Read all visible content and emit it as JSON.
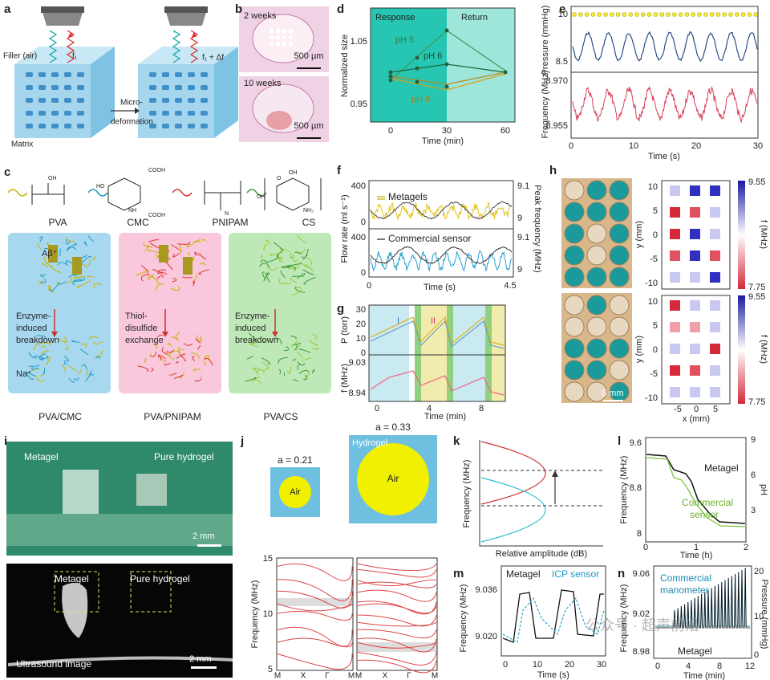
{
  "panels": {
    "a": {
      "label": "a",
      "filler": "Filler (air)",
      "f1": "f₁",
      "f1df": "f₁ + Δf",
      "micro": "Micro-",
      "deformation": "deformation",
      "matrix": "Matrix"
    },
    "b": {
      "label": "b",
      "w2": "2 weeks",
      "scale1": "500 µm",
      "w10": "10 weeks",
      "scale2": "500 µm"
    },
    "c": {
      "label": "c",
      "pva": "PVA",
      "cmc": "CMC",
      "pnipam": "PNIPAM",
      "cs": "CS",
      "groups": [
        "OH",
        "COOH",
        "HO",
        "NH",
        "COOH",
        "O",
        "N",
        "OH",
        "OH",
        "NH₂"
      ],
      "ion": "Aβ⁺",
      "enzyme1": [
        "Enzyme-",
        "induced",
        "breakdown"
      ],
      "na": "Na⁺",
      "thiol": [
        "Thiol-",
        "disulfide",
        "exchange"
      ],
      "enzyme2": [
        "Enzyme-",
        "induced",
        "breakdown"
      ],
      "names": [
        "PVA/CMC",
        "PVA/PNIPAM",
        "PVA/CS"
      ]
    },
    "d": {
      "label": "d",
      "response": "Response",
      "return": "Return",
      "ylabel": "Normalized size",
      "yticks": [
        1.05,
        0.95
      ],
      "xticks": [
        0,
        30,
        60
      ],
      "xlabel": "Time (min)",
      "ph5": "pH 5",
      "ph6": "pH 6",
      "ph8": "pH 8"
    },
    "e": {
      "label": "e",
      "yticks_p": [
        10,
        8.5
      ],
      "ylabel_p": "Pressure (mmHg)",
      "yticks_f": [
        "8.970",
        "8.955"
      ],
      "ylabel_f": "Frequency (MHz)",
      "xticks": [
        0,
        10,
        20,
        30
      ],
      "xlabel": "Time (s)"
    },
    "f": {
      "label": "f",
      "yticks_top": [
        400,
        0
      ],
      "yticks_bottom": [
        400,
        0
      ],
      "ylabel": "Flow rate (ml s⁻¹)",
      "y2ticks_top": [
        9.1,
        9
      ],
      "y2ticks_bottom": [
        9.1,
        9
      ],
      "y2label": "Peak frequency (MHz)",
      "legend1": "Metagels",
      "legend2": "Commercial sensor",
      "xticks": [
        0,
        4.5
      ],
      "xlabel": "Time (s)"
    },
    "g": {
      "label": "g",
      "yticks_p": [
        30,
        20,
        10,
        0
      ],
      "ylabel_p": "P (torr)",
      "phase1": "I",
      "phase2": "II",
      "yticks_f": [
        9.03,
        8.94
      ],
      "ylabel_f": "f (MHz)",
      "xticks": [
        0,
        4,
        8
      ],
      "xlabel": "Time (min)"
    },
    "h": {
      "label": "h",
      "scale": "3 mm",
      "maps": [
        {
          "yticks": [
            10,
            5,
            0,
            -5,
            -10
          ],
          "ylabel": "y (mm)",
          "cbar": [
            9.55,
            7.75
          ],
          "cbar_label": "f (MHz)"
        },
        {
          "yticks": [
            10,
            5,
            0,
            -5,
            -10
          ],
          "ylabel": "y (mm)",
          "cbar": [
            9.55,
            7.75
          ],
          "cbar_label": "f (MHz)"
        }
      ],
      "xticks": [
        -5,
        0,
        5
      ],
      "xlabel": "x (mm)"
    },
    "i": {
      "label": "i",
      "metagel": "Metagel",
      "pure": "Pure hydrogel",
      "scale": "2 mm",
      "us_metagel": "Metagel",
      "us_pure": "Pure hydrogel",
      "us_title": "Ultrasound image",
      "us_scale": "2 mm"
    },
    "j": {
      "label": "j",
      "a1": "a = 0.21",
      "a2": "a = 0.33",
      "hydrogel": "Hydrogel",
      "air1": "Air",
      "air2": "Air",
      "yticks": [
        15,
        10,
        5
      ],
      "ylabel": "Frequency (MHz)",
      "xticks_left": [
        "M",
        "X",
        "Γ",
        "M"
      ],
      "xticks_right": [
        "M",
        "X",
        "Γ",
        "M"
      ]
    },
    "k": {
      "label": "k",
      "ylabel": "Frequency (MHz)",
      "xlabel": "Relative amplitude (dB)"
    },
    "l": {
      "label": "l",
      "yticks": [
        9.6,
        8.8,
        8
      ],
      "y2ticks": [
        9,
        6,
        3
      ],
      "ylabel": "Frequency (MHz)",
      "y2label": "pH",
      "xticks": [
        0,
        1,
        2
      ],
      "xlabel": "Time (h)",
      "metagel": "Metagel",
      "commercial": [
        "Commercial",
        "sensor"
      ]
    },
    "m": {
      "label": "m",
      "metagel": "Metagel",
      "icp": "ICP sensor",
      "yticks": [
        "9.036",
        "9.020"
      ],
      "ylabel": "Frequency (MHz)",
      "xticks": [
        0,
        10,
        20,
        30
      ],
      "xlabel": "Time (s)"
    },
    "n": {
      "label": "n",
      "commercial": [
        "Commercial",
        "manometer"
      ],
      "metagel": "Metagel",
      "yticks": [
        9.06,
        9.02,
        8.98
      ],
      "y2ticks": [
        20,
        10,
        0
      ],
      "ylabel": "Frequency (MHz)",
      "y2label": "Pressure (mmHg)",
      "xticks": [
        0,
        4,
        8,
        12
      ],
      "xlabel": "Time (min)"
    }
  },
  "watermark": "公众号 · 超声前沿"
}
